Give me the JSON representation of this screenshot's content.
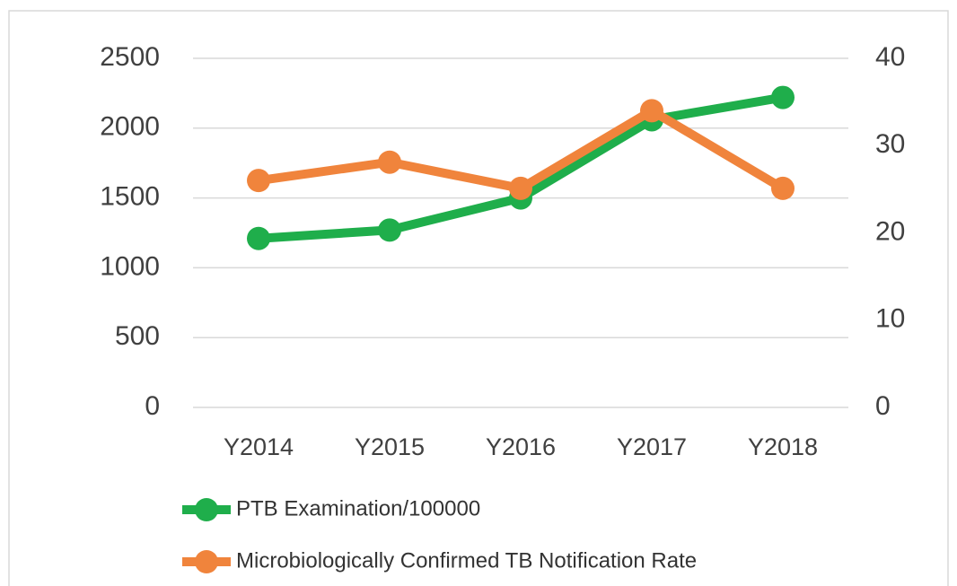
{
  "chart_data": {
    "type": "line",
    "categories": [
      "Y2014",
      "Y2015",
      "Y2016",
      "Y2017",
      "Y2018"
    ],
    "series": [
      {
        "name": "PTB Examination/100000",
        "color": "#1fae4b",
        "values": [
          1210,
          1270,
          1500,
          2060,
          2220
        ]
      },
      {
        "name": "Microbiologically Confirmed TB Notification Rate",
        "color": "#f0843c",
        "axis": "y2",
        "values": [
          26.0,
          28.1,
          25.1,
          34.0,
          25.1
        ]
      }
    ],
    "ylim": [
      0,
      2500
    ],
    "yticks": [
      0,
      500,
      1000,
      1500,
      2000,
      2500
    ],
    "y2lim": [
      0,
      40
    ],
    "y2ticks": [
      0,
      10,
      20,
      30,
      40
    ],
    "grid": true,
    "legend": "bottom"
  }
}
